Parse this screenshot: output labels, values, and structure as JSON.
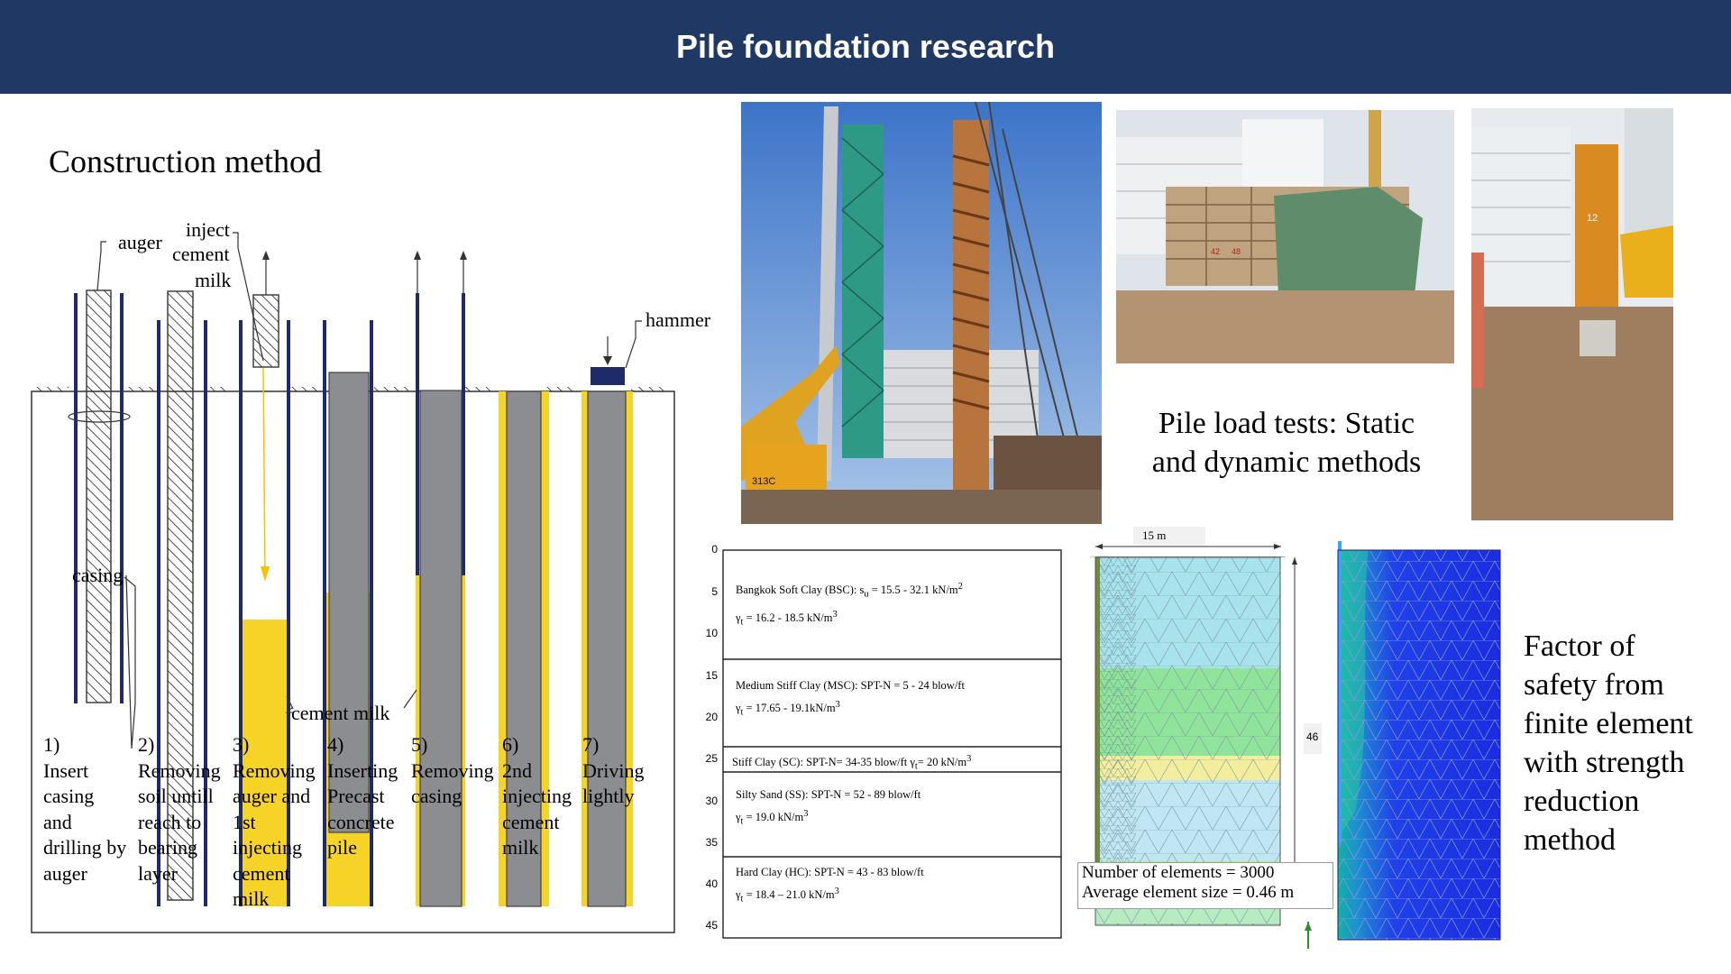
{
  "header": {
    "title": "Pile foundation research"
  },
  "construction": {
    "title": "Construction method",
    "labels": {
      "auger": "auger",
      "inject_1": "inject",
      "inject_2": "cement",
      "inject_3": "milk",
      "casing": "casing",
      "hammer": "hammer",
      "cement_milk": "cement milk"
    },
    "steps": [
      [
        "1)",
        "Insert",
        "casing",
        "and",
        "drilling by",
        "auger"
      ],
      [
        "2)",
        "Removing",
        "soil untill",
        "reach to",
        "bearing",
        "layer"
      ],
      [
        "3)",
        "Removing",
        "auger and",
        "1st",
        "injecting",
        "cement",
        "milk"
      ],
      [
        "4)",
        "Inserting",
        "Precast",
        "concrete",
        "pile"
      ],
      [
        "5)",
        "Removing",
        "casing"
      ],
      [
        "6)",
        "2nd",
        "injecting",
        "cement",
        "milk"
      ],
      [
        "7)",
        "Driving",
        "lightly"
      ]
    ]
  },
  "load_tests": {
    "line1": "Pile load tests: Static",
    "line2": "and dynamic methods"
  },
  "fos": {
    "lines": [
      "Factor of",
      "safety from",
      "finite element",
      "with strength",
      "reduction",
      "method"
    ]
  },
  "soil_profile": {
    "y_ticks": [
      "0",
      "5",
      "10",
      "15",
      "20",
      "25",
      "30",
      "35",
      "40",
      "45"
    ],
    "layers": [
      {
        "name": "Bangkok Soft Clay (BSC): s",
        "sub": "u",
        "rest": " = 15.5 - 32.1 kN/m",
        "sup": "2",
        "gamma": "γ",
        "gsub": "t",
        "gval": " = 16.2 - 18.5 kN/m",
        "gsup": "3"
      },
      {
        "name": "Medium Stiff Clay (MSC): SPT-N = 5 - 24 blow/ft",
        "gamma": "γ",
        "gsub": "t",
        "gval": " = 17.65 - 19.1kN/m",
        "gsup": "3"
      },
      {
        "name": "Stiff Clay (SC): SPT-N= 34-35 blow/ft γ",
        "nsub": "t",
        "nrest": "= 20 kN/m",
        "nsup": "3"
      },
      {
        "name": "Silty Sand (SS): SPT-N = 52 - 89 blow/ft",
        "gamma": "γ",
        "gsub": "t",
        "gval": " = 19.0 kN/m",
        "gsup": "3"
      },
      {
        "name": "Hard Clay (HC): SPT-N = 43 - 83 blow/ft",
        "gamma": "γ",
        "gsub": "t",
        "gval": " = 18.4 – 21.0 kN/m",
        "gsup": "3"
      }
    ]
  },
  "mesh": {
    "width_label": "15 m",
    "height_label": "46",
    "elements_line": "Number of elements = 3000",
    "size_line": "Average element size = 0.46 m"
  },
  "photo_texts": {
    "excavator": "313C",
    "plate": "42",
    "plate2": "48",
    "leader": "12"
  },
  "colors": {
    "header": "#1f3864",
    "casing": "#1f2a6b",
    "cement": "#f5d327",
    "pile": "#8c8d91",
    "bsc": "#a8e2ec",
    "msc": "#8fe39a",
    "sc": "#f3ee9e",
    "ss": "#bfe6f2",
    "hc": "#b6ecc0"
  }
}
